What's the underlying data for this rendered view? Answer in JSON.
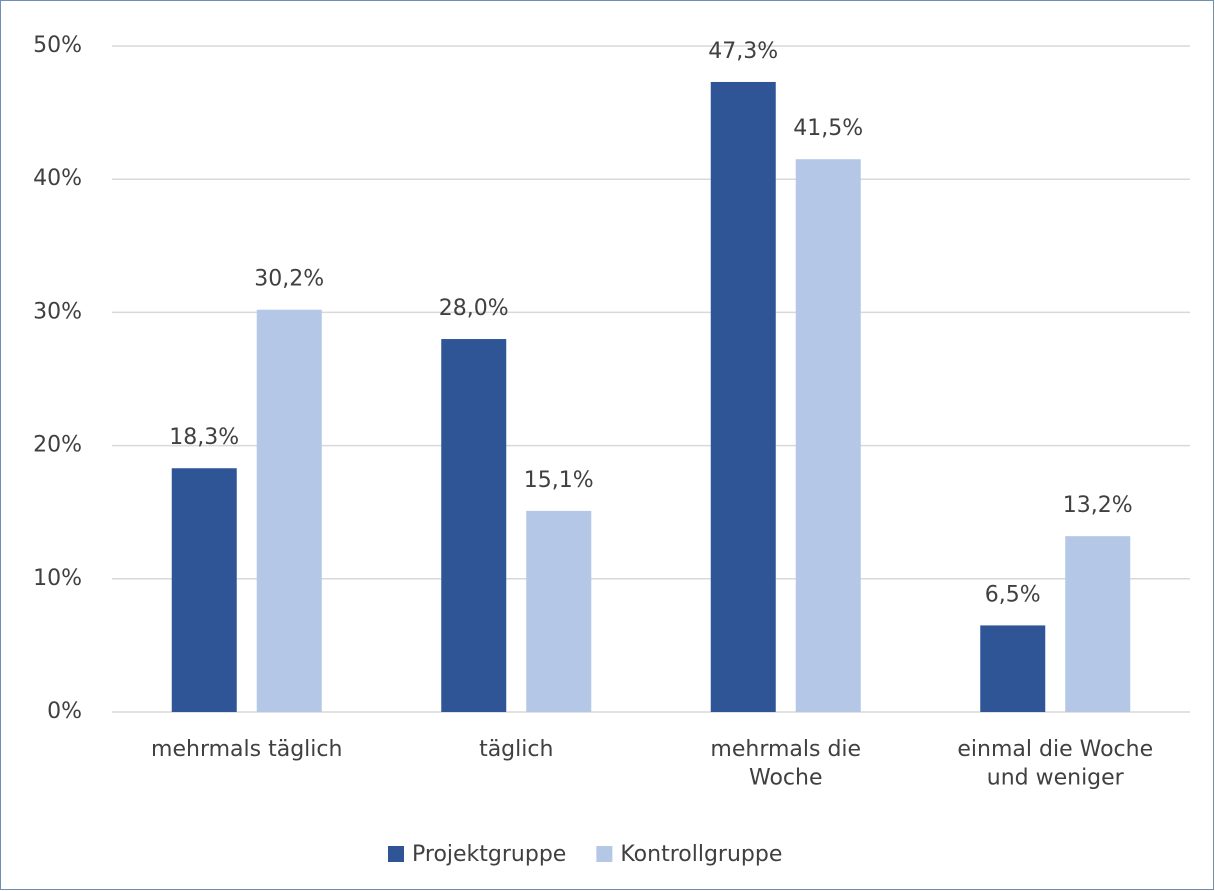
{
  "chart_data": {
    "type": "bar",
    "categories": [
      "mehrmals täglich",
      "täglich",
      "mehrmals die\nWoche",
      "einmal die Woche\nund weniger"
    ],
    "series": [
      {
        "name": "Projektgruppe",
        "color": "#2f5597",
        "values": [
          18.3,
          28.0,
          47.3,
          6.5
        ],
        "value_labels": [
          "18,3%",
          "28,0%",
          "47,3%",
          "6,5%"
        ]
      },
      {
        "name": "Kontrollgruppe",
        "color": "#b4c7e7",
        "values": [
          30.2,
          15.1,
          41.5,
          13.2
        ],
        "value_labels": [
          "30,2%",
          "15,1%",
          "41,5%",
          "13,2%"
        ]
      }
    ],
    "ylim": [
      0,
      50
    ],
    "yticks": [
      {
        "value": 0,
        "label": "0%"
      },
      {
        "value": 10,
        "label": "10%"
      },
      {
        "value": 20,
        "label": "20%"
      },
      {
        "value": 30,
        "label": "30%"
      },
      {
        "value": 40,
        "label": "40%"
      },
      {
        "value": 50,
        "label": "50%"
      }
    ],
    "grid": true,
    "legend": "bottom"
  }
}
